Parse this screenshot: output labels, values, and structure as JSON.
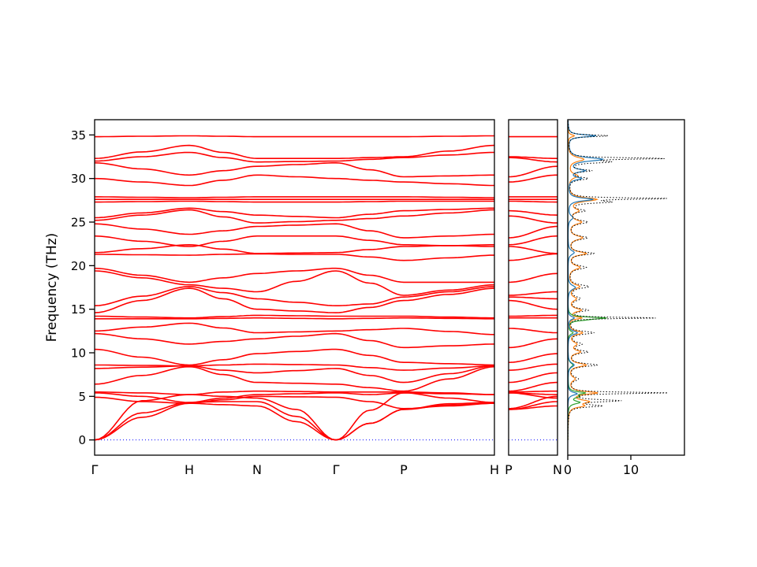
{
  "chart_data": {
    "type": "line",
    "title": "",
    "description": "Phonon band structure along high-symmetry path with projected density of states",
    "ylabel": "Frequency (THz)",
    "ylim": [
      -1.75,
      36.75
    ],
    "yticks": [
      0,
      5,
      10,
      15,
      20,
      25,
      30,
      35
    ],
    "band_color": "#ff0000",
    "zero_line_color": "#0000ff",
    "kpath": {
      "labels": [
        "Γ",
        "H",
        "N",
        "Γ",
        "P",
        "H"
      ],
      "positions": [
        0,
        0.2367,
        0.4063,
        0.6036,
        0.7732,
        1.0
      ]
    },
    "bands_control_points": [
      "Γ",
      "mid",
      "H",
      "mid",
      "N",
      "mid",
      "Γ",
      "mid",
      "P",
      "mid",
      "H"
    ],
    "bands": [
      [
        0,
        2.6,
        4.2,
        4.05,
        3.9,
        2.1,
        0,
        1.9,
        3.5,
        4.0,
        4.2
      ],
      [
        0,
        3.1,
        4.3,
        4.4,
        4.4,
        2.7,
        0,
        1.9,
        3.5,
        4.15,
        4.3
      ],
      [
        0,
        4.5,
        5.2,
        5.0,
        4.8,
        3.5,
        0,
        3.4,
        5.4,
        5.3,
        5.2
      ],
      [
        4.9,
        4.4,
        4.2,
        4.6,
        5.0,
        4.95,
        4.9,
        4.4,
        3.6,
        3.9,
        4.2
      ],
      [
        5.4,
        5.0,
        4.3,
        4.8,
        5.2,
        5.3,
        5.4,
        5.2,
        5.4,
        4.8,
        4.3
      ],
      [
        5.5,
        5.4,
        5.2,
        5.5,
        5.6,
        5.55,
        5.5,
        5.5,
        5.5,
        5.4,
        5.2
      ],
      [
        6.4,
        7.4,
        8.4,
        7.5,
        6.6,
        6.5,
        6.4,
        6.0,
        5.6,
        7.0,
        8.4
      ],
      [
        8.2,
        8.35,
        8.5,
        8.0,
        7.7,
        7.95,
        8.2,
        7.4,
        6.6,
        7.6,
        8.5
      ],
      [
        8.6,
        8.55,
        8.5,
        8.6,
        8.7,
        8.65,
        8.6,
        8.3,
        8.0,
        8.25,
        8.5
      ],
      [
        10.4,
        9.5,
        8.6,
        9.2,
        9.9,
        10.15,
        10.4,
        9.7,
        8.9,
        8.75,
        8.6
      ],
      [
        12.2,
        11.6,
        11.0,
        11.3,
        11.6,
        11.9,
        12.2,
        11.4,
        10.6,
        10.8,
        11.0
      ],
      [
        12.5,
        12.95,
        13.4,
        12.85,
        12.3,
        12.4,
        12.5,
        12.65,
        12.8,
        12.45,
        12.1
      ],
      [
        13.9,
        13.9,
        13.9,
        13.95,
        14.0,
        13.95,
        13.9,
        13.95,
        14.0,
        13.95,
        13.9
      ],
      [
        14.2,
        14.1,
        14.0,
        14.15,
        14.3,
        14.25,
        14.2,
        14.2,
        14.2,
        14.1,
        14.0
      ],
      [
        14.6,
        16.0,
        17.4,
        16.2,
        15.0,
        14.8,
        14.6,
        15.2,
        16.0,
        16.7,
        17.4
      ],
      [
        15.4,
        16.5,
        17.6,
        16.9,
        16.2,
        15.8,
        15.4,
        15.6,
        16.4,
        17.0,
        17.6
      ],
      [
        19.4,
        18.6,
        17.8,
        17.4,
        17.0,
        18.2,
        19.4,
        18.0,
        16.6,
        17.2,
        17.8
      ],
      [
        19.7,
        18.9,
        18.1,
        18.6,
        19.1,
        19.4,
        19.7,
        18.9,
        18.1,
        18.1,
        18.1
      ],
      [
        21.3,
        21.25,
        21.2,
        21.3,
        21.35,
        21.3,
        21.3,
        21.0,
        20.6,
        20.9,
        21.2
      ],
      [
        21.5,
        21.95,
        22.4,
        21.9,
        21.4,
        21.45,
        21.5,
        21.85,
        22.2,
        22.3,
        22.4
      ],
      [
        23.4,
        22.8,
        22.2,
        22.8,
        23.4,
        23.4,
        23.4,
        22.9,
        22.4,
        22.3,
        22.2
      ],
      [
        24.8,
        24.2,
        23.6,
        24.0,
        24.5,
        24.65,
        24.8,
        24.0,
        23.2,
        23.4,
        23.6
      ],
      [
        25.2,
        25.8,
        26.4,
        25.6,
        24.9,
        25.05,
        25.2,
        25.4,
        25.7,
        26.05,
        26.4
      ],
      [
        25.5,
        26.05,
        26.6,
        26.2,
        25.8,
        25.65,
        25.5,
        25.9,
        26.3,
        26.45,
        26.6
      ],
      [
        27.3,
        27.35,
        27.4,
        27.35,
        27.3,
        27.3,
        27.3,
        27.35,
        27.4,
        27.4,
        27.4
      ],
      [
        27.6,
        27.6,
        27.6,
        27.6,
        27.6,
        27.6,
        27.6,
        27.6,
        27.6,
        27.6,
        27.6
      ],
      [
        27.9,
        27.85,
        27.8,
        27.85,
        27.9,
        27.9,
        27.9,
        27.9,
        27.9,
        27.85,
        27.8
      ],
      [
        30.0,
        29.6,
        29.2,
        29.8,
        30.4,
        30.2,
        30.0,
        29.8,
        29.6,
        29.4,
        29.2
      ],
      [
        31.8,
        31.1,
        30.4,
        30.9,
        31.4,
        31.6,
        31.8,
        31.0,
        30.2,
        30.3,
        30.4
      ],
      [
        32.0,
        32.5,
        33.0,
        32.4,
        31.9,
        31.95,
        32.0,
        32.2,
        32.4,
        32.7,
        33.0
      ],
      [
        32.3,
        33.05,
        33.8,
        33.0,
        32.3,
        32.3,
        32.3,
        32.4,
        32.5,
        33.15,
        33.8
      ],
      [
        34.8,
        34.85,
        34.9,
        34.85,
        34.8,
        34.8,
        34.8,
        34.8,
        34.8,
        34.85,
        34.9
      ]
    ],
    "mini_panel": {
      "labels": [
        "P",
        "N"
      ]
    },
    "dos_panel": {
      "xticks": [
        0,
        10
      ],
      "xlim": [
        0,
        18.5
      ],
      "series": [
        {
          "name": "pdos-orange",
          "color": "#ff7f0e",
          "style": "solid",
          "peaks": [
            [
              34.9,
              1.0,
              0.15
            ],
            [
              32.2,
              2.5,
              0.3
            ],
            [
              30.3,
              1.5,
              0.3
            ],
            [
              27.6,
              4.5,
              0.25
            ],
            [
              26.3,
              1.5,
              0.3
            ],
            [
              25.0,
              2.0,
              0.3
            ],
            [
              23.2,
              2.2,
              0.3
            ],
            [
              21.4,
              2.8,
              0.25
            ],
            [
              19.8,
              1.8,
              0.3
            ],
            [
              17.6,
              1.8,
              0.3
            ],
            [
              16.2,
              1.2,
              0.3
            ],
            [
              14.9,
              2.0,
              0.25
            ],
            [
              14.0,
              2.0,
              0.15
            ],
            [
              12.3,
              2.2,
              0.25
            ],
            [
              11.0,
              1.2,
              0.3
            ],
            [
              10.1,
              1.8,
              0.25
            ],
            [
              8.6,
              2.8,
              0.25
            ],
            [
              7.0,
              1.0,
              0.3
            ],
            [
              5.4,
              4.5,
              0.2
            ],
            [
              4.4,
              3.0,
              0.25
            ],
            [
              3.9,
              2.0,
              0.2
            ]
          ]
        },
        {
          "name": "pdos-green",
          "color": "#2ca02c",
          "style": "solid",
          "peaks": [
            [
              14.0,
              5.5,
              0.12
            ],
            [
              13.8,
              2.0,
              0.15
            ],
            [
              12.3,
              0.8,
              0.2
            ],
            [
              8.6,
              0.8,
              0.3
            ],
            [
              5.4,
              2.5,
              0.15
            ],
            [
              5.0,
              1.5,
              0.2
            ],
            [
              4.3,
              1.8,
              0.2
            ]
          ]
        },
        {
          "name": "pdos-blue",
          "color": "#1f77b4",
          "style": "solid",
          "peaks": [
            [
              34.9,
              4.5,
              0.15
            ],
            [
              32.2,
              5.5,
              0.25
            ],
            [
              30.9,
              2.5,
              0.2
            ],
            [
              30.0,
              2.0,
              0.2
            ],
            [
              27.6,
              4.0,
              0.2
            ],
            [
              25.5,
              0.8,
              0.3
            ],
            [
              21.5,
              1.0,
              0.3
            ],
            [
              17.5,
              1.2,
              0.3
            ],
            [
              14.0,
              1.0,
              0.2
            ],
            [
              12.3,
              1.5,
              0.25
            ],
            [
              8.6,
              1.0,
              0.3
            ],
            [
              5.3,
              1.5,
              0.2
            ]
          ]
        },
        {
          "name": "total-dos",
          "color": "#000000",
          "style": "dotted",
          "peaks": [
            [
              34.9,
              6.5,
              0.12
            ],
            [
              32.3,
              15.0,
              0.1
            ],
            [
              31.9,
              6.0,
              0.15
            ],
            [
              30.9,
              3.5,
              0.15
            ],
            [
              30.0,
              3.0,
              0.2
            ],
            [
              27.7,
              15.5,
              0.1
            ],
            [
              27.3,
              6.0,
              0.15
            ],
            [
              26.3,
              2.5,
              0.2
            ],
            [
              25.0,
              3.0,
              0.25
            ],
            [
              23.2,
              3.0,
              0.25
            ],
            [
              21.4,
              4.0,
              0.2
            ],
            [
              19.8,
              2.8,
              0.25
            ],
            [
              17.6,
              3.2,
              0.25
            ],
            [
              16.2,
              1.8,
              0.3
            ],
            [
              14.9,
              3.0,
              0.2
            ],
            [
              14.0,
              14.5,
              0.08
            ],
            [
              12.3,
              4.0,
              0.2
            ],
            [
              11.0,
              2.0,
              0.25
            ],
            [
              10.1,
              3.0,
              0.2
            ],
            [
              8.6,
              4.5,
              0.2
            ],
            [
              7.0,
              1.5,
              0.3
            ],
            [
              5.4,
              15.5,
              0.1
            ],
            [
              4.5,
              8.0,
              0.15
            ],
            [
              3.9,
              5.0,
              0.15
            ]
          ]
        }
      ]
    }
  }
}
